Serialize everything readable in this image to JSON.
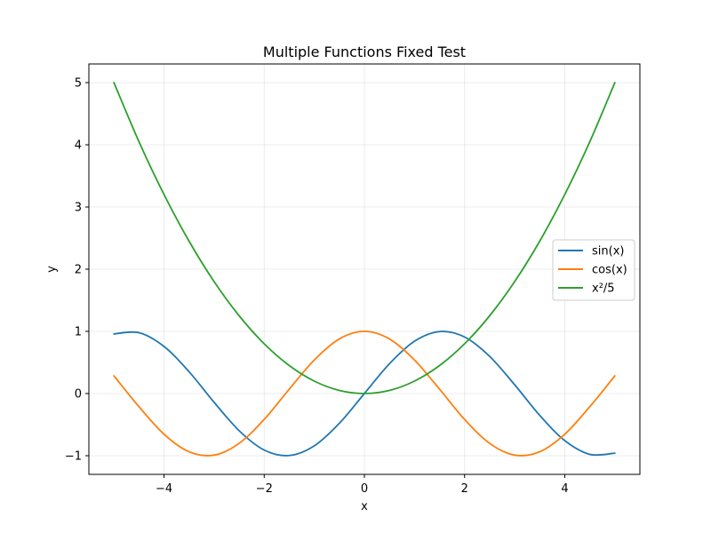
{
  "chart_data": {
    "type": "line",
    "title": "Multiple Functions Fixed Test",
    "xlabel": "x",
    "ylabel": "y",
    "xlim": [
      -5.5,
      5.5
    ],
    "ylim": [
      -1.3,
      5.3
    ],
    "xticks": [
      -4,
      -2,
      0,
      2,
      4
    ],
    "yticks": [
      -1,
      0,
      1,
      2,
      3,
      4,
      5
    ],
    "xtick_labels": [
      "−4",
      "−2",
      "0",
      "2",
      "4"
    ],
    "ytick_labels": [
      "−1",
      "0",
      "1",
      "2",
      "3",
      "4",
      "5"
    ],
    "grid": true,
    "legend_position": "center-right",
    "x": [
      -5,
      -4.5,
      -4,
      -3.5,
      -3,
      -2.5,
      -2,
      -1.5,
      -1,
      -0.5,
      0,
      0.5,
      1,
      1.5,
      2,
      2.5,
      3,
      3.5,
      4,
      4.5,
      5
    ],
    "series": [
      {
        "name": "sin(x)",
        "color": "#1f77b4",
        "values": [
          0.959,
          0.978,
          0.757,
          0.351,
          -0.141,
          -0.598,
          -0.909,
          -0.997,
          -0.841,
          -0.479,
          0,
          0.479,
          0.841,
          0.997,
          0.909,
          0.598,
          0.141,
          -0.351,
          -0.757,
          -0.978,
          -0.959
        ]
      },
      {
        "name": "cos(x)",
        "color": "#ff7f0e",
        "values": [
          0.284,
          -0.211,
          -0.654,
          -0.936,
          -0.99,
          -0.801,
          -0.416,
          0.071,
          0.54,
          0.878,
          1,
          0.878,
          0.54,
          0.071,
          -0.416,
          -0.801,
          -0.99,
          -0.936,
          -0.654,
          -0.211,
          0.284
        ]
      },
      {
        "name": "x²/5",
        "color": "#2ca02c",
        "values": [
          5,
          4.05,
          3.2,
          2.45,
          1.8,
          1.25,
          0.8,
          0.45,
          0.2,
          0.05,
          0,
          0.05,
          0.2,
          0.45,
          0.8,
          1.25,
          1.8,
          2.45,
          3.2,
          4.05,
          5
        ]
      }
    ]
  }
}
